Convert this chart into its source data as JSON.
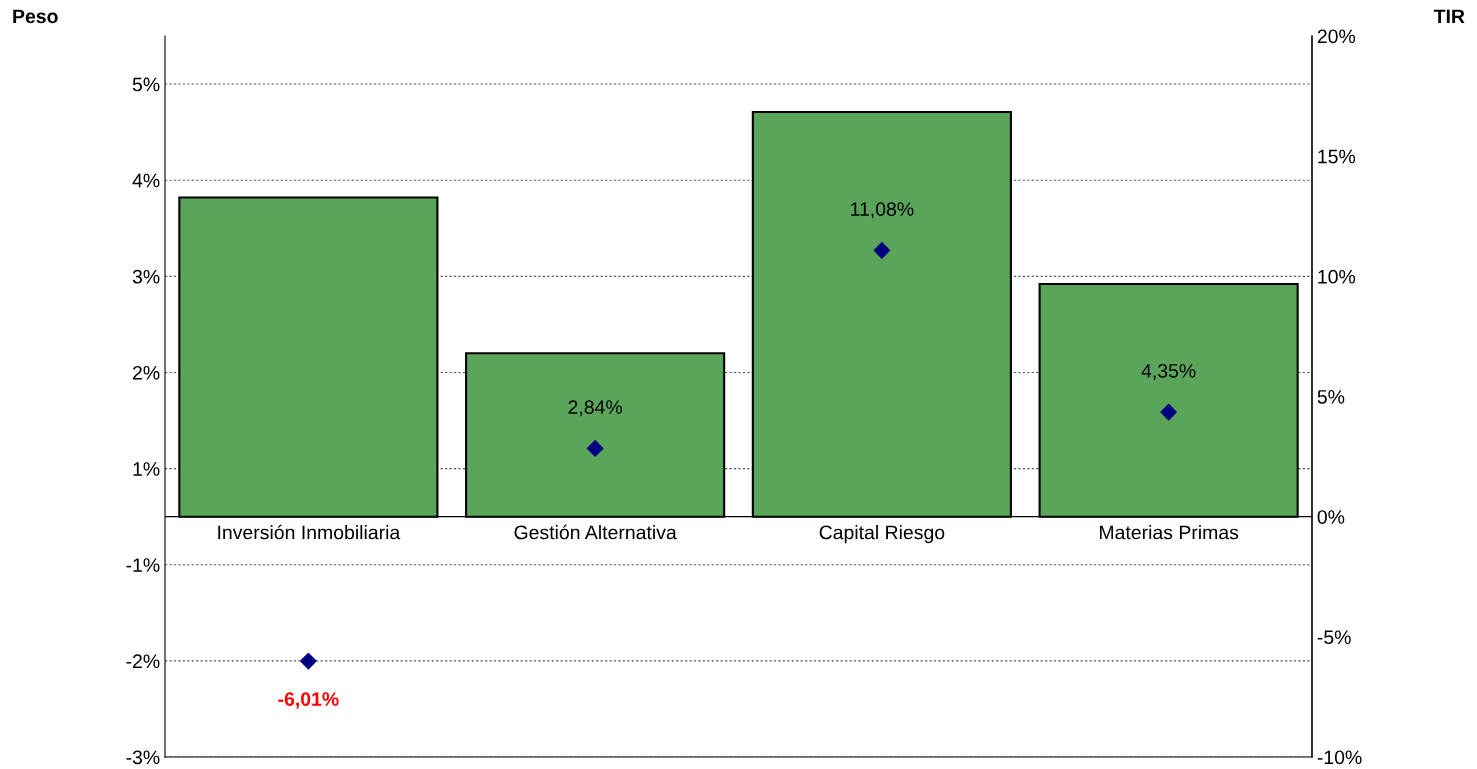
{
  "chart_data": {
    "type": "bar",
    "ylabel": "Peso",
    "y2label": "TIR",
    "categories": [
      "Inversión Inmobiliaria",
      "Gestión Alternativa",
      "Capital Riesgo",
      "Materias Primas"
    ],
    "series": [
      {
        "color": "#5aa55a",
        "values": [
          3.32,
          1.7,
          4.21,
          2.42
        ]
      },
      {
        "type": "scatter",
        "axis": "y2",
        "color": "#000080",
        "values": [
          -6.01,
          2.84,
          11.08,
          4.35
        ],
        "value_labels": [
          "-6,01%",
          "2,84%",
          "11,08%",
          "4,35%"
        ]
      }
    ],
    "ylim": [
      -2.5,
      5.0
    ],
    "yticks": [
      {
        "value": -2.5,
        "label": "-3%"
      },
      {
        "value": -1.5,
        "label": "-2%"
      },
      {
        "value": -0.5,
        "label": "-1%"
      },
      {
        "value": 0.5,
        "label": "1%"
      },
      {
        "value": 1.5,
        "label": "2%"
      },
      {
        "value": 2.5,
        "label": "3%"
      },
      {
        "value": 3.5,
        "label": "4%"
      },
      {
        "value": 4.5,
        "label": "5%"
      }
    ],
    "y2lim": [
      -10,
      20
    ],
    "y2ticks": [
      {
        "value": -10,
        "label": "-10%"
      },
      {
        "value": -5,
        "label": "-5%"
      },
      {
        "value": 0,
        "label": "0%"
      },
      {
        "value": 5,
        "label": "5%"
      },
      {
        "value": 10,
        "label": "10%"
      },
      {
        "value": 15,
        "label": "15%"
      },
      {
        "value": 20,
        "label": "20%"
      }
    ],
    "grid": "y",
    "marker": "diamond"
  }
}
